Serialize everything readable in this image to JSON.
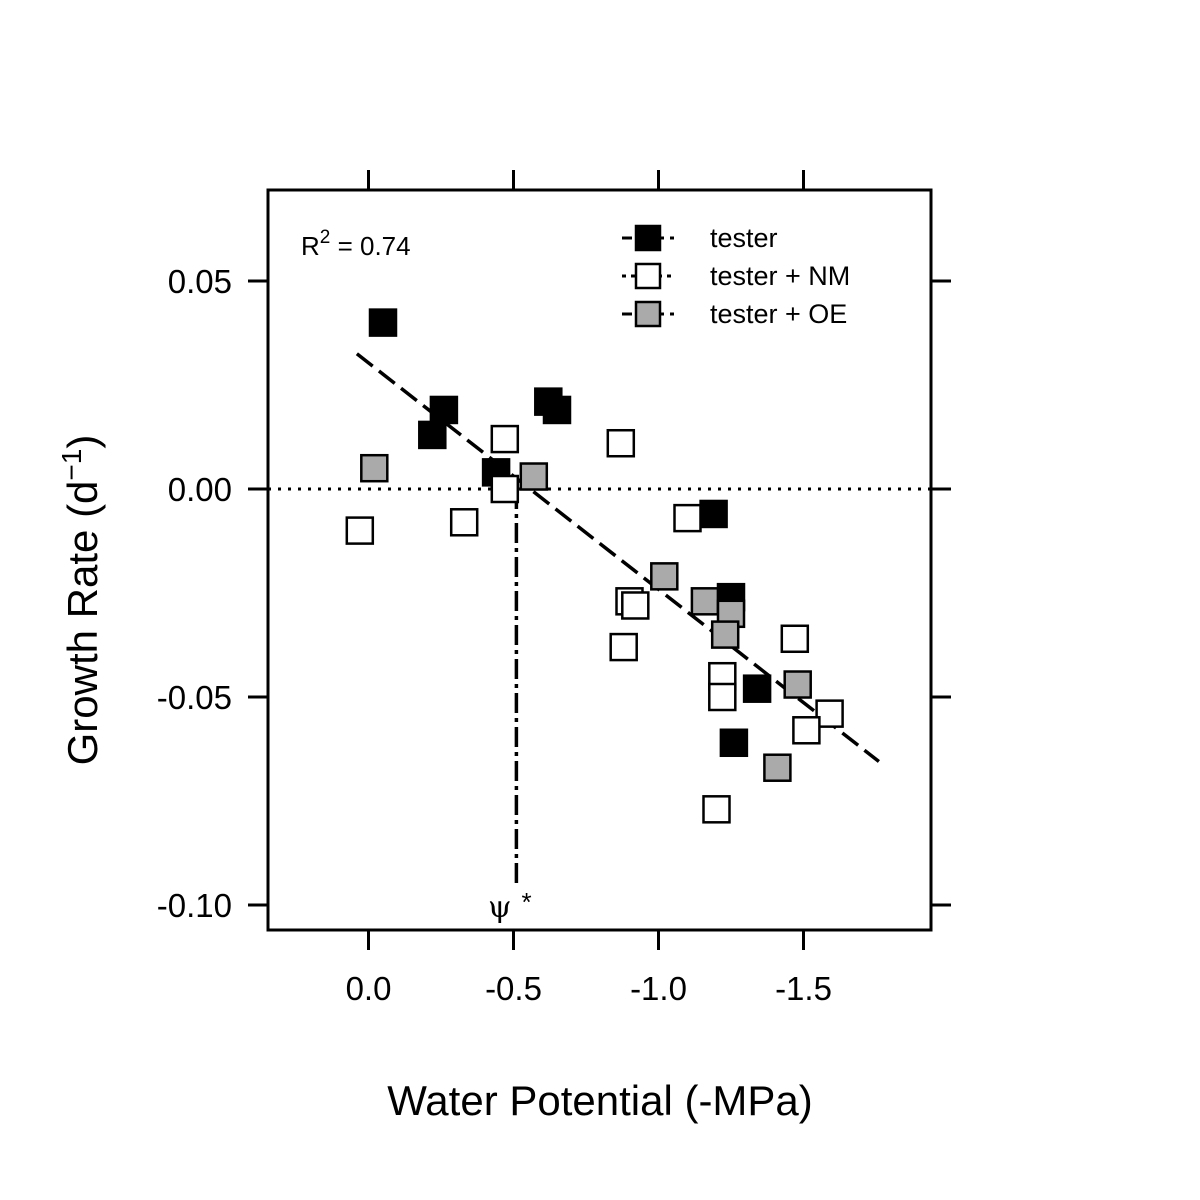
{
  "chart_data": {
    "type": "scatter",
    "xlabel": "Water Potential (-MPa)",
    "ylabel_main": "Growth Rate (d",
    "ylabel_sup": "−1",
    "ylabel_close": ")",
    "xlim": [
      0.35,
      -1.9
    ],
    "ylim": [
      -0.1,
      0.07
    ],
    "x_ticks": [
      0.0,
      -0.5,
      -1.0,
      -1.5
    ],
    "x_tick_labels": [
      "0.0",
      "-0.5",
      "-1.0",
      "-1.5"
    ],
    "y_ticks": [
      0.05,
      0.0,
      -0.05,
      -0.1
    ],
    "y_tick_labels": [
      "0.05",
      "0.00",
      "-0.05",
      "-0.10"
    ],
    "reference_line_y": 0.0,
    "annotation_r2": {
      "prefix": "R",
      "sup": "2",
      "suffix": " = 0.74"
    },
    "annotation_psi": {
      "symbol": "ψ",
      "star": "*",
      "x": -0.51
    },
    "fit_line": {
      "x": [
        0.04,
        -1.76
      ],
      "y": [
        0.0325,
        -0.0655
      ]
    },
    "series": [
      {
        "name": "tester",
        "fill": "#000000",
        "points": [
          [
            -0.05,
            0.04
          ],
          [
            -0.26,
            0.019
          ],
          [
            -0.22,
            0.013
          ],
          [
            -0.44,
            0.004
          ],
          [
            -0.62,
            0.021
          ],
          [
            -0.65,
            0.019
          ],
          [
            -1.19,
            -0.006
          ],
          [
            -1.25,
            -0.026
          ],
          [
            -1.34,
            -0.048
          ],
          [
            -1.26,
            -0.061
          ]
        ]
      },
      {
        "name": "tester + NM",
        "fill": "#ffffff",
        "points": [
          [
            0.03,
            -0.01
          ],
          [
            -0.33,
            -0.008
          ],
          [
            -0.47,
            0.012
          ],
          [
            -0.47,
            0.0
          ],
          [
            -0.87,
            0.011
          ],
          [
            -0.9,
            -0.027
          ],
          [
            -0.92,
            -0.028
          ],
          [
            -0.88,
            -0.038
          ],
          [
            -1.1,
            -0.007
          ],
          [
            -1.22,
            -0.045
          ],
          [
            -1.22,
            -0.05
          ],
          [
            -1.47,
            -0.036
          ],
          [
            -1.59,
            -0.054
          ],
          [
            -1.51,
            -0.058
          ],
          [
            -1.2,
            -0.077
          ]
        ]
      },
      {
        "name": "tester + OE",
        "fill": "#aaaaaa",
        "points": [
          [
            -0.02,
            0.005
          ],
          [
            -0.57,
            0.003
          ],
          [
            -1.02,
            -0.021
          ],
          [
            -1.16,
            -0.027
          ],
          [
            -1.25,
            -0.03
          ],
          [
            -1.23,
            -0.035
          ],
          [
            -1.48,
            -0.047
          ],
          [
            -1.41,
            -0.067
          ]
        ]
      }
    ],
    "legend": {
      "position": "top-right",
      "entries": [
        {
          "label": "tester",
          "fill": "#000000",
          "line": "dashed"
        },
        {
          "label": "tester + NM",
          "fill": "#ffffff",
          "line": "dotted"
        },
        {
          "label": "tester + OE",
          "fill": "#aaaaaa",
          "line": "dashed"
        }
      ]
    }
  }
}
